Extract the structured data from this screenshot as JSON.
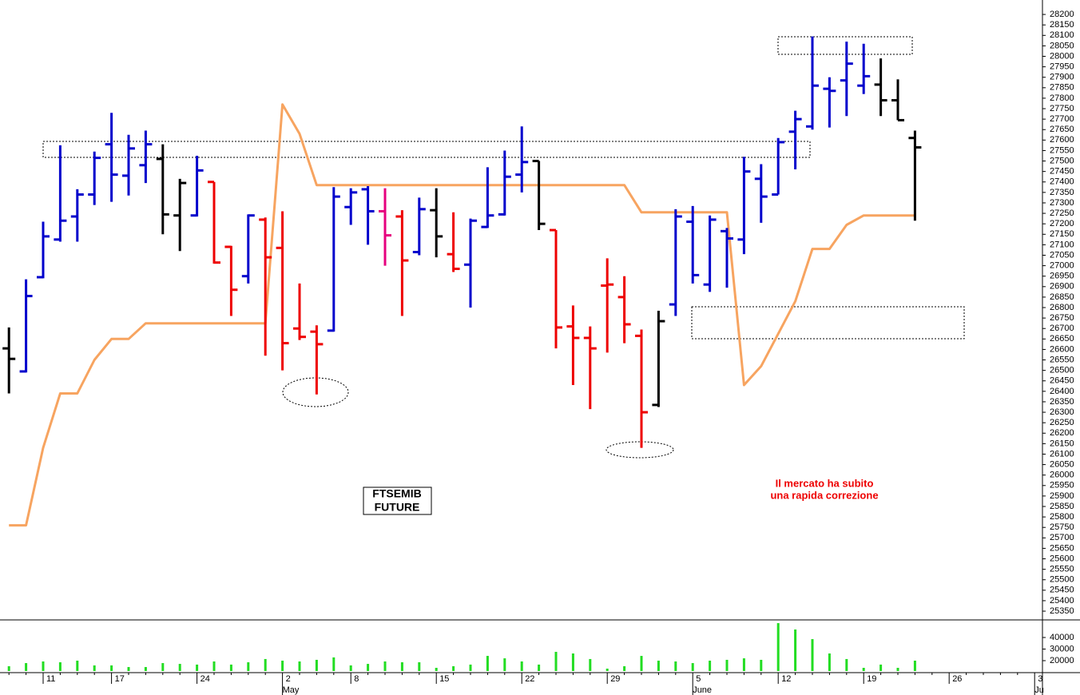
{
  "chart_data": {
    "type": "ohlc",
    "label_box": [
      "FTSEMIB",
      "FUTURE"
    ],
    "note": [
      "Il mercato ha subito",
      "una rapida correzione"
    ],
    "categories": [
      null,
      null,
      "11",
      null,
      null,
      null,
      "17",
      null,
      null,
      null,
      null,
      "24",
      null,
      null,
      null,
      null,
      "2",
      null,
      null,
      null,
      "8",
      null,
      null,
      null,
      null,
      "15",
      null,
      null,
      null,
      null,
      "22",
      null,
      null,
      null,
      null,
      "29",
      null,
      null,
      null,
      null,
      "5",
      null,
      null,
      null,
      null,
      "12",
      null,
      null,
      null,
      null,
      "19",
      null,
      null,
      null,
      null,
      "26",
      null,
      null,
      null,
      null,
      "3"
    ],
    "months": [
      null,
      null,
      null,
      null,
      null,
      null,
      null,
      null,
      null,
      null,
      null,
      null,
      null,
      null,
      null,
      null,
      "May",
      null,
      null,
      null,
      null,
      null,
      null,
      null,
      null,
      null,
      null,
      null,
      null,
      null,
      null,
      null,
      null,
      null,
      null,
      null,
      null,
      null,
      null,
      null,
      "June",
      null,
      null,
      null,
      null,
      null,
      null,
      null,
      null,
      null,
      null,
      null,
      null,
      null,
      null,
      null,
      null,
      null,
      null,
      null,
      "Ju"
    ],
    "open": [
      26605,
      26495,
      26945,
      27125,
      27235,
      27340,
      27580,
      27430,
      27480,
      27510,
      27240,
      27240,
      27400,
      27090,
      26950,
      27220,
      27085,
      26700,
      26685,
      26690,
      27280,
      27365,
      27260,
      27235,
      27065,
      27265,
      27055,
      27005,
      27185,
      27245,
      27435,
      27500,
      27170,
      26710,
      26655,
      26905,
      26850,
      26665,
      26335,
      26815,
      27210,
      26910,
      27165,
      27125,
      27415,
      27340,
      27640,
      27665,
      27845,
      27885,
      27860,
      27865,
      27790,
      27610,
      null,
      null,
      null,
      null,
      null,
      null,
      null
    ],
    "high": [
      26705,
      26935,
      27210,
      27575,
      27365,
      27545,
      27730,
      27625,
      27645,
      27580,
      27415,
      27525,
      27400,
      27095,
      27245,
      27230,
      27260,
      26915,
      26715,
      27375,
      27370,
      27380,
      27370,
      27265,
      27325,
      27370,
      27255,
      27225,
      27470,
      27550,
      27665,
      27500,
      27170,
      26810,
      26710,
      27035,
      26950,
      26695,
      26785,
      27270,
      27285,
      27240,
      27180,
      27520,
      27485,
      27610,
      27740,
      28095,
      27900,
      28070,
      28060,
      27990,
      27890,
      27645,
      null,
      null,
      null,
      null,
      null,
      null,
      null
    ],
    "low": [
      26390,
      26490,
      26940,
      27115,
      27115,
      27290,
      27305,
      27335,
      27395,
      27150,
      27070,
      27235,
      27010,
      26760,
      26915,
      26570,
      26500,
      26645,
      26385,
      26685,
      27195,
      27100,
      27000,
      26760,
      27050,
      27040,
      26970,
      26800,
      27180,
      27240,
      27350,
      27170,
      26605,
      26430,
      26315,
      26585,
      26630,
      26130,
      26325,
      26760,
      26915,
      26875,
      26895,
      27055,
      27205,
      27340,
      27460,
      27650,
      27660,
      27715,
      27820,
      27715,
      27695,
      27215,
      null,
      null,
      null,
      null,
      null,
      null,
      null
    ],
    "close": [
      26555,
      26855,
      27140,
      27215,
      27340,
      27515,
      27435,
      27560,
      27580,
      27245,
      27395,
      27455,
      27015,
      26885,
      27240,
      27040,
      26630,
      26660,
      26625,
      27330,
      27350,
      27260,
      27145,
      27025,
      27270,
      27140,
      26985,
      27215,
      27240,
      27425,
      27495,
      27200,
      26705,
      26655,
      26605,
      26910,
      26720,
      26300,
      26735,
      27235,
      26955,
      27220,
      27130,
      27450,
      27330,
      27590,
      27700,
      27860,
      27835,
      27965,
      27905,
      27790,
      27695,
      27565,
      null,
      null,
      null,
      null,
      null,
      null,
      null
    ],
    "bar_colors": [
      "#000000",
      "#0000cc",
      "#0000cc",
      "#0000cc",
      "#0000cc",
      "#0000cc",
      "#0000cc",
      "#0000cc",
      "#0000cc",
      "#000000",
      "#000000",
      "#0000cc",
      "#ee0000",
      "#ee0000",
      "#0000cc",
      "#ee0000",
      "#ee0000",
      "#ee0000",
      "#ee0000",
      "#0000cc",
      "#0000cc",
      "#0000cc",
      "#e6007e",
      "#ee0000",
      "#0000cc",
      "#000000",
      "#ee0000",
      "#0000cc",
      "#0000cc",
      "#0000cc",
      "#0000cc",
      "#000000",
      "#ee0000",
      "#ee0000",
      "#ee0000",
      "#ee0000",
      "#ee0000",
      "#ee0000",
      "#000000",
      "#0000cc",
      "#0000cc",
      "#0000cc",
      "#0000cc",
      "#0000cc",
      "#0000cc",
      "#0000cc",
      "#0000cc",
      "#0000cc",
      "#0000cc",
      "#0000cc",
      "#0000cc",
      "#000000",
      "#000000",
      "#000000",
      null,
      null,
      null,
      null,
      null,
      null,
      null
    ],
    "line": {
      "color": "#f7a460",
      "values": [
        25760,
        25760,
        26130,
        26390,
        26390,
        26550,
        26650,
        26650,
        26725,
        26725,
        26725,
        26725,
        26725,
        26725,
        26725,
        26725,
        27770,
        27630,
        27385,
        27385,
        27385,
        27385,
        27385,
        27385,
        27385,
        27385,
        27385,
        27385,
        27385,
        27385,
        27385,
        27385,
        27385,
        27385,
        27385,
        27385,
        27385,
        27255,
        27255,
        27255,
        27255,
        27255,
        27255,
        26430,
        26520,
        26675,
        26830,
        27080,
        27080,
        27195,
        27240,
        27240,
        27240,
        27240,
        null,
        null,
        null,
        null,
        null,
        null,
        null
      ]
    },
    "ylim": [
      25312,
      28269
    ],
    "yticks": [
      25350,
      25400,
      25450,
      25500,
      25550,
      25600,
      25650,
      25700,
      25750,
      25800,
      25850,
      25900,
      25950,
      26000,
      26050,
      26100,
      26150,
      26200,
      26250,
      26300,
      26350,
      26400,
      26450,
      26500,
      26550,
      26600,
      26650,
      26700,
      26750,
      26800,
      26850,
      26900,
      26950,
      27000,
      27050,
      27100,
      27150,
      27200,
      27250,
      27300,
      27350,
      27400,
      27450,
      27500,
      27550,
      27600,
      27650,
      27700,
      27750,
      27800,
      27850,
      27900,
      27950,
      28000,
      28050,
      28100,
      28150,
      28200
    ],
    "volume": {
      "color": "#22dd22",
      "ylim": [
        9650,
        55170
      ],
      "yticks": [
        20000,
        30000,
        40000
      ],
      "values": [
        15200,
        17900,
        19300,
        18600,
        20000,
        15900,
        15900,
        14500,
        14500,
        17900,
        17200,
        16600,
        19300,
        16600,
        18600,
        21400,
        20000,
        19300,
        20700,
        22800,
        15900,
        17200,
        19300,
        18600,
        18600,
        13800,
        15200,
        16600,
        24100,
        22000,
        19300,
        16600,
        27600,
        26200,
        21400,
        13100,
        15200,
        24100,
        20000,
        19300,
        17900,
        20000,
        20700,
        22000,
        20700,
        52400,
        46900,
        38600,
        26200,
        21400,
        13800,
        16600,
        13800,
        20000,
        null,
        null,
        null,
        null,
        null,
        null,
        null
      ]
    }
  }
}
